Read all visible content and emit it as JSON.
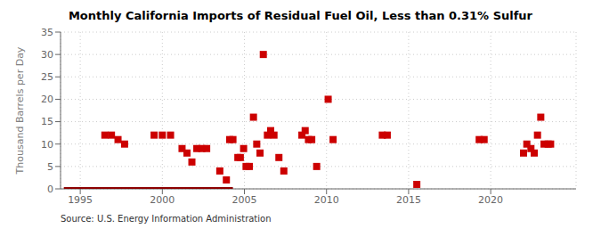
{
  "chart_data": {
    "type": "scatter",
    "title": "Monthly California Imports of Residual Fuel Oil, Less than 0.31% Sulfur",
    "y_label": "Thousand Barrels per Day",
    "annotations": [
      "Source: U.S. Energy Information Administration"
    ],
    "xlim": [
      1993.8,
      2025.2
    ],
    "xticks": [
      1995,
      2000,
      2005,
      2010,
      2015,
      2020
    ],
    "ylim": [
      0,
      35
    ],
    "yticks": [
      0,
      5,
      10,
      15,
      20,
      25,
      30,
      35
    ],
    "grid": true,
    "series": [
      {
        "type": "line",
        "color": "#8b0000",
        "line_style": "solid",
        "x": [
          1994.0,
          2004.3
        ],
        "values": [
          0,
          0
        ]
      },
      {
        "type": "scatter",
        "color": "#cc0000",
        "marker": "square",
        "x": [
          1996.5,
          1996.9,
          1997.3,
          1997.7,
          1999.5,
          2000.0,
          2000.5,
          2001.2,
          2001.5,
          2001.8,
          2002.1,
          2002.4,
          2002.7,
          2003.5,
          2003.9,
          2004.1,
          2004.3,
          2004.6,
          2004.75,
          2004.95,
          2005.1,
          2005.3,
          2005.55,
          2005.75,
          2005.95,
          2006.15,
          2006.4,
          2006.6,
          2006.8,
          2007.1,
          2007.4,
          2008.5,
          2008.7,
          2008.9,
          2009.1,
          2009.4,
          2010.1,
          2010.4,
          2013.4,
          2013.7,
          2015.5,
          2019.3,
          2019.6,
          2022.0,
          2022.2,
          2022.45,
          2022.65,
          2022.85,
          2023.05,
          2023.25,
          2023.5,
          2023.65
        ],
        "values": [
          12,
          12,
          11,
          10,
          12,
          12,
          12,
          9,
          8,
          6,
          9,
          9,
          9,
          4,
          2,
          11,
          11,
          7,
          7,
          9,
          5,
          5,
          16,
          10,
          8,
          30,
          12,
          13,
          12,
          7,
          4,
          12,
          13,
          11,
          11,
          5,
          20,
          11,
          12,
          12,
          1,
          11,
          11,
          8,
          10,
          9,
          8,
          12,
          16,
          10,
          10,
          10
        ]
      }
    ]
  }
}
